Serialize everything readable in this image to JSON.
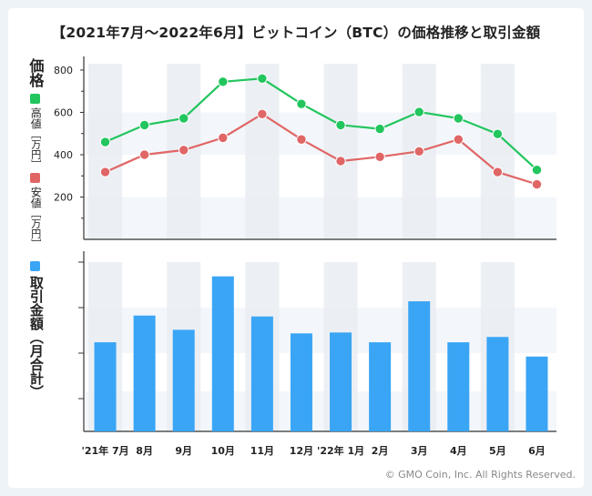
{
  "title": "【2021年7月〜2022年6月】ビットコイン（BTC）の価格推移と取引金額",
  "legend": {
    "price_label": "価格",
    "high_label": "高値",
    "high_unit": "［万円］",
    "low_label": "安値",
    "low_unit": "［万円］",
    "volume_label": "取引金額",
    "volume_unit": "（月合計）"
  },
  "copyright": "© GMO Coin, Inc. All Rights Reserved.",
  "colors": {
    "high": "#22c55e",
    "low": "#e06666",
    "volume": "#3aa5f5",
    "band": "#e9edf2",
    "grid_band": "#f3f7fb"
  },
  "chart_data": [
    {
      "type": "line",
      "title": "価格",
      "categories": [
        "'21年 7月",
        "8月",
        "9月",
        "10月",
        "11月",
        "12月",
        "'22年 1月",
        "2月",
        "3月",
        "4月",
        "5月",
        "6月"
      ],
      "series": [
        {
          "name": "高値",
          "values": [
            460,
            540,
            572,
            745,
            760,
            640,
            540,
            522,
            602,
            572,
            498,
            328
          ]
        },
        {
          "name": "安値",
          "values": [
            318,
            400,
            422,
            480,
            592,
            472,
            370,
            390,
            416,
            472,
            318,
            260
          ]
        }
      ],
      "ylabel": "［万円］",
      "ylim": [
        0,
        830
      ],
      "yticks": [
        200,
        400,
        600,
        800
      ]
    },
    {
      "type": "bar",
      "title": "取引金額（月合計）",
      "categories": [
        "'21年 7月",
        "8月",
        "9月",
        "10月",
        "11月",
        "12月",
        "'22年 1月",
        "2月",
        "3月",
        "4月",
        "5月",
        "6月"
      ],
      "values": [
        100,
        130,
        114,
        174,
        129,
        110,
        111,
        100,
        146,
        100,
        106,
        84
      ],
      "ylim": [
        0,
        190
      ]
    }
  ]
}
